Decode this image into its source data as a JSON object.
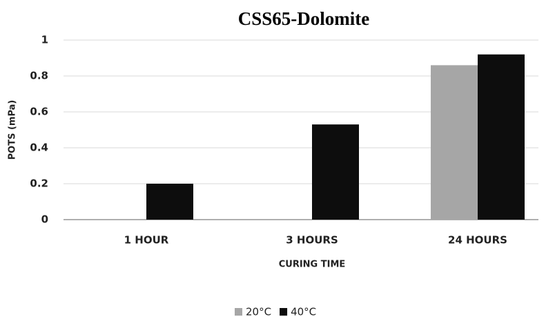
{
  "chart_data": {
    "type": "bar",
    "title": "CSS65-Dolomite",
    "x_label": "CURING TIME",
    "y_label": "POTS (mPa)",
    "categories": [
      "1 HOUR",
      "3 HOURS",
      "24 HOURS"
    ],
    "series": [
      {
        "name": "20°C",
        "color": "#a6a6a6",
        "values": [
          0,
          0,
          0.86
        ]
      },
      {
        "name": "40°C",
        "color": "#0d0d0d",
        "values": [
          0.2,
          0.53,
          0.92
        ]
      }
    ],
    "ylim": [
      0,
      1
    ],
    "yticks": [
      0,
      0.2,
      0.4,
      0.6,
      0.8,
      1
    ],
    "grid": true
  }
}
